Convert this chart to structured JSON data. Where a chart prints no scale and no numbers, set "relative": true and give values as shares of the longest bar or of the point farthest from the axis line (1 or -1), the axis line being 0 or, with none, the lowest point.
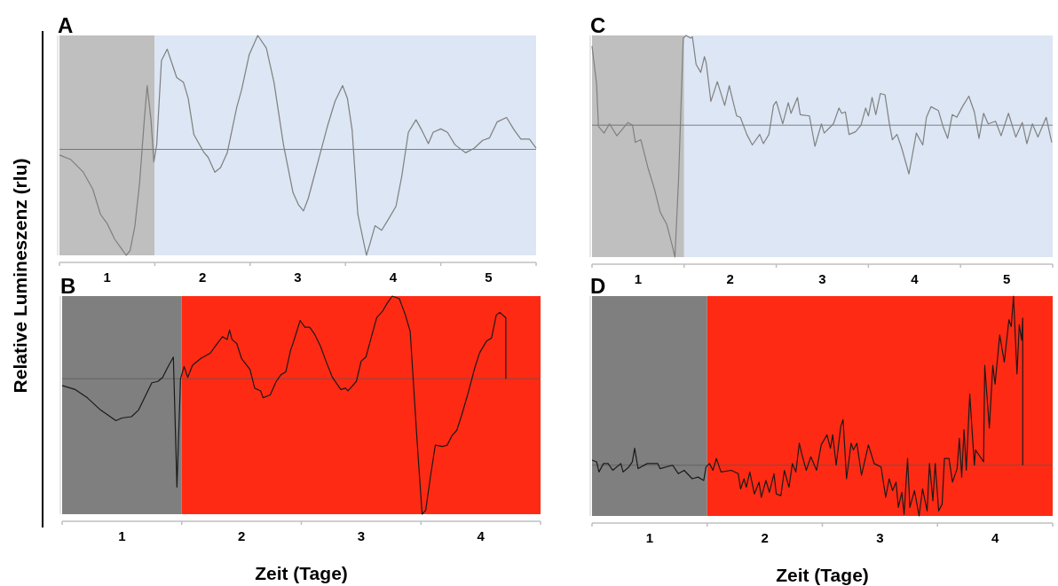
{
  "chart_data": [
    {
      "type": "line",
      "title": "A",
      "ylabel": "Relative Lumineszenz (rlu)",
      "relative": true,
      "xlim": [
        0,
        5
      ],
      "xticks": [
        {
          "value": 0,
          "label": null
        },
        {
          "value": 0.5,
          "label": "1"
        },
        {
          "value": 1,
          "label": null
        },
        {
          "value": 1.5,
          "label": "2"
        },
        {
          "value": 2,
          "label": null
        },
        {
          "value": 2.5,
          "label": "3"
        },
        {
          "value": 3,
          "label": null
        },
        {
          "value": 3.5,
          "label": "4"
        },
        {
          "value": 4,
          "label": null
        },
        {
          "value": 4.5,
          "label": "5"
        },
        {
          "value": 5,
          "label": null
        }
      ],
      "bands": [
        {
          "axis": "x",
          "from": 0,
          "to": 1,
          "color": "#bfbfbf"
        },
        {
          "axis": "x",
          "from": 1,
          "to": 5,
          "color": "#dce6f4"
        }
      ],
      "series": [
        {
          "color": "#7f7f7f",
          "x": [
            0,
            0.12,
            0.25,
            0.35,
            0.43,
            0.5,
            0.58,
            0.65,
            0.7,
            0.74,
            0.79,
            0.84,
            0.89,
            0.92,
            0.96,
            0.99,
            1.02,
            1.07,
            1.13,
            1.17,
            1.23,
            1.3,
            1.35,
            1.41,
            1.51,
            1.56,
            1.63,
            1.69,
            1.76,
            1.86,
            1.91,
            1.99,
            2.08,
            2.17,
            2.25,
            2.35,
            2.45,
            2.51,
            2.56,
            2.61,
            2.68,
            2.74,
            2.81,
            2.89,
            2.97,
            3.02,
            3.07,
            3.13,
            3.22,
            3.26,
            3.31,
            3.38,
            3.46,
            3.53,
            3.59,
            3.66,
            3.74,
            3.8,
            3.87,
            3.92,
            4,
            4.07,
            4.15,
            4.26,
            4.35,
            4.44,
            4.51,
            4.59,
            4.69,
            4.77,
            4.84,
            4.93,
            5
          ],
          "values": [
            -0.05,
            -0.09,
            -0.2,
            -0.35,
            -0.57,
            -0.65,
            -0.79,
            -0.87,
            -0.93,
            -0.89,
            -0.68,
            -0.3,
            0.26,
            0.56,
            0.26,
            -0.11,
            0.04,
            0.78,
            0.88,
            0.78,
            0.63,
            0.59,
            0.45,
            0.13,
            -0.02,
            -0.07,
            -0.2,
            -0.16,
            -0.03,
            0.37,
            0.52,
            0.83,
            1,
            0.89,
            0.59,
            0.04,
            -0.38,
            -0.49,
            -0.54,
            -0.43,
            -0.21,
            -0.02,
            0.2,
            0.42,
            0.56,
            0.45,
            0.17,
            -0.57,
            -0.93,
            -0.82,
            -0.67,
            -0.71,
            -0.6,
            -0.5,
            -0.24,
            0.15,
            0.26,
            0.17,
            0.05,
            0.15,
            0.18,
            0.15,
            0.04,
            -0.03,
            0.01,
            0.08,
            0.1,
            0.24,
            0.28,
            0.17,
            0.09,
            0.09,
            0.01
          ]
        }
      ]
    },
    {
      "type": "line",
      "title": "C",
      "relative": true,
      "xlim": [
        0,
        5
      ],
      "xticks": [
        {
          "value": 0,
          "label": null
        },
        {
          "value": 0.5,
          "label": "1"
        },
        {
          "value": 1,
          "label": null
        },
        {
          "value": 1.5,
          "label": "2"
        },
        {
          "value": 2,
          "label": null
        },
        {
          "value": 2.5,
          "label": "3"
        },
        {
          "value": 3,
          "label": null
        },
        {
          "value": 3.5,
          "label": "4"
        },
        {
          "value": 4,
          "label": null
        },
        {
          "value": 4.5,
          "label": "5"
        },
        {
          "value": 5,
          "label": null
        }
      ],
      "bands": [
        {
          "axis": "x",
          "from": 0,
          "to": 1,
          "color": "#bfbfbf"
        },
        {
          "axis": "x",
          "from": 1,
          "to": 5,
          "color": "#dce6f4"
        }
      ],
      "series": [
        {
          "color": "#808080",
          "x": [
            0,
            0.05,
            0.07,
            0.13,
            0.19,
            0.27,
            0.39,
            0.44,
            0.47,
            0.53,
            0.61,
            0.68,
            0.74,
            0.81,
            0.87,
            0.9,
            0.94,
            0.99,
            1.02,
            1.07,
            1.09,
            1.13,
            1.18,
            1.22,
            1.24,
            1.29,
            1.36,
            1.44,
            1.49,
            1.52,
            1.57,
            1.61,
            1.68,
            1.74,
            1.82,
            1.86,
            1.92,
            1.97,
            2,
            2.07,
            2.13,
            2.16,
            2.23,
            2.26,
            2.36,
            2.42,
            2.49,
            2.52,
            2.62,
            2.68,
            2.71,
            2.75,
            2.79,
            2.86,
            2.92,
            2.97,
            3,
            3.04,
            3.08,
            3.13,
            3.18,
            3.23,
            3.26,
            3.31,
            3.36,
            3.44,
            3.52,
            3.59,
            3.63,
            3.68,
            3.76,
            3.81,
            3.86,
            3.91,
            3.96,
            4.02,
            4.09,
            4.15,
            4.2,
            4.25,
            4.3,
            4.38,
            4.44,
            4.52,
            4.6,
            4.67,
            4.72,
            4.78,
            4.84,
            4.93,
            4.99
          ],
          "values": [
            0.6,
            0.31,
            -0.01,
            -0.06,
            0.01,
            -0.08,
            0.02,
            0,
            -0.13,
            -0.11,
            -0.33,
            -0.49,
            -0.66,
            -0.75,
            -0.91,
            -1,
            -0.4,
            0.66,
            0.68,
            0.66,
            0.67,
            0.46,
            0.4,
            0.52,
            0.47,
            0.18,
            0.33,
            0.15,
            0.3,
            0.21,
            0.07,
            0.06,
            -0.07,
            -0.15,
            -0.07,
            -0.14,
            -0.07,
            0.15,
            0.18,
            0.01,
            0.17,
            0.09,
            0.21,
            0.08,
            0.07,
            -0.16,
            0.01,
            -0.06,
            0.01,
            0.13,
            0.09,
            0.1,
            -0.07,
            -0.05,
            0,
            0.13,
            0.07,
            0.21,
            0.08,
            0.24,
            0.23,
            0,
            -0.11,
            -0.07,
            -0.17,
            -0.37,
            -0.06,
            -0.15,
            0.06,
            0.14,
            0.11,
            -0.01,
            -0.1,
            0.08,
            0.06,
            0.14,
            0.22,
            0.1,
            -0.1,
            0.09,
            0.01,
            0.03,
            -0.08,
            0.09,
            -0.09,
            0.02,
            -0.14,
            0.01,
            -0.09,
            0.06,
            -0.13
          ]
        }
      ]
    },
    {
      "type": "line",
      "title": "B",
      "xlabel": "Zeit (Tage)",
      "relative": true,
      "xlim": [
        0,
        4
      ],
      "xticks": [
        {
          "value": 0,
          "label": null
        },
        {
          "value": 0.5,
          "label": "1"
        },
        {
          "value": 1,
          "label": null
        },
        {
          "value": 1.5,
          "label": "2"
        },
        {
          "value": 2,
          "label": null
        },
        {
          "value": 2.5,
          "label": "3"
        },
        {
          "value": 3,
          "label": null
        },
        {
          "value": 3.5,
          "label": "4"
        },
        {
          "value": 4,
          "label": null
        }
      ],
      "bands": [
        {
          "axis": "x",
          "from": 0,
          "to": 1,
          "color": "#7f7f7f"
        },
        {
          "axis": "x",
          "from": 1,
          "to": 4,
          "color": "#ff2a14"
        }
      ],
      "series": [
        {
          "color": "#1a1a1a",
          "x": [
            0,
            0.11,
            0.21,
            0.32,
            0.45,
            0.5,
            0.58,
            0.64,
            0.7,
            0.75,
            0.8,
            0.84,
            0.88,
            0.93,
            0.96,
            0.99,
            1.02,
            1.05,
            1.09,
            1.16,
            1.24,
            1.28,
            1.34,
            1.38,
            1.4,
            1.42,
            1.46,
            1.5,
            1.57,
            1.61,
            1.66,
            1.68,
            1.74,
            1.79,
            1.83,
            1.87,
            1.91,
            1.93,
            1.99,
            2.03,
            2.07,
            2.11,
            2.16,
            2.21,
            2.26,
            2.33,
            2.37,
            2.39,
            2.46,
            2.5,
            2.54,
            2.58,
            2.63,
            2.68,
            2.72,
            2.76,
            2.82,
            2.87,
            2.91,
            2.93,
            2.97,
            3.01,
            3.04,
            3.08,
            3.12,
            3.18,
            3.22,
            3.26,
            3.3,
            3.34,
            3.39,
            3.45,
            3.49,
            3.55,
            3.59,
            3.63,
            3.66,
            3.71,
            3.71
          ],
          "values": [
            -0.05,
            -0.08,
            -0.14,
            -0.23,
            -0.31,
            -0.29,
            -0.28,
            -0.23,
            -0.12,
            -0.03,
            -0.02,
            0.01,
            0.08,
            0.16,
            -0.8,
            0,
            0.09,
            0.01,
            0.1,
            0.15,
            0.19,
            0.24,
            0.31,
            0.29,
            0.36,
            0.29,
            0.26,
            0.15,
            0.07,
            -0.07,
            -0.09,
            -0.14,
            -0.12,
            -0.02,
            0.03,
            0.05,
            0.21,
            0.26,
            0.43,
            0.38,
            0.38,
            0.33,
            0.24,
            0.12,
            0.01,
            -0.08,
            -0.07,
            -0.09,
            -0.02,
            0.13,
            0.16,
            0.29,
            0.45,
            0.5,
            0.56,
            0.61,
            0.59,
            0.47,
            0.35,
            0.07,
            -0.49,
            -1,
            -0.97,
            -0.72,
            -0.49,
            -0.5,
            -0.49,
            -0.42,
            -0.38,
            -0.27,
            -0.12,
            0.08,
            0.19,
            0.28,
            0.3,
            0.47,
            0.49,
            0.45,
            0
          ]
        }
      ]
    },
    {
      "type": "line",
      "title": "D",
      "xlabel": "Zeit (Tage)",
      "relative": true,
      "xlim": [
        0,
        4
      ],
      "xticks": [
        {
          "value": 0,
          "label": null
        },
        {
          "value": 0.5,
          "label": "1"
        },
        {
          "value": 1,
          "label": null
        },
        {
          "value": 1.5,
          "label": "2"
        },
        {
          "value": 2,
          "label": null
        },
        {
          "value": 2.5,
          "label": "3"
        },
        {
          "value": 3,
          "label": null
        },
        {
          "value": 3.5,
          "label": "4"
        },
        {
          "value": 4,
          "label": null
        }
      ],
      "bands": [
        {
          "axis": "x",
          "from": 0,
          "to": 1,
          "color": "#7f7f7f"
        },
        {
          "axis": "x",
          "from": 1,
          "to": 4,
          "color": "#ff2a14"
        }
      ],
      "series": [
        {
          "color": "#1a1a1a",
          "x": [
            0,
            0.04,
            0.06,
            0.1,
            0.14,
            0.18,
            0.25,
            0.27,
            0.32,
            0.35,
            0.37,
            0.4,
            0.48,
            0.57,
            0.59,
            0.7,
            0.75,
            0.8,
            0.87,
            0.92,
            0.97,
            0.99,
            1.02,
            1.05,
            1.08,
            1.12,
            1.21,
            1.27,
            1.29,
            1.32,
            1.34,
            1.37,
            1.41,
            1.45,
            1.47,
            1.51,
            1.54,
            1.58,
            1.6,
            1.64,
            1.67,
            1.71,
            1.74,
            1.77,
            1.8,
            1.82,
            1.86,
            1.9,
            1.95,
            1.99,
            2.04,
            2.07,
            2.09,
            2.12,
            2.16,
            2.18,
            2.21,
            2.25,
            2.27,
            2.3,
            2.34,
            2.4,
            2.45,
            2.51,
            2.55,
            2.58,
            2.61,
            2.64,
            2.66,
            2.69,
            2.71,
            2.74,
            2.76,
            2.8,
            2.84,
            2.87,
            2.91,
            2.93,
            2.96,
            2.98,
            3.01,
            3.04,
            3.06,
            3.1,
            3.13,
            3.17,
            3.19,
            3.21,
            3.23,
            3.25,
            3.28,
            3.32,
            3.33,
            3.37,
            3.4,
            3.41,
            3.45,
            3.48,
            3.5,
            3.54,
            3.58,
            3.62,
            3.64,
            3.66,
            3.69,
            3.71,
            3.73,
            3.74,
            3.74
          ],
          "values": [
            0.03,
            0.02,
            -0.04,
            0.01,
            0.01,
            -0.03,
            0.01,
            -0.04,
            -0.01,
            0.02,
            0.1,
            -0.02,
            0.01,
            0.01,
            -0.02,
            0,
            -0.05,
            -0.03,
            -0.08,
            -0.07,
            -0.09,
            -0.01,
            0.01,
            -0.03,
            0.04,
            -0.04,
            -0.03,
            -0.05,
            -0.14,
            -0.08,
            -0.13,
            -0.04,
            -0.17,
            -0.1,
            -0.19,
            -0.09,
            -0.16,
            -0.05,
            -0.17,
            -0.18,
            -0.03,
            -0.13,
            0.01,
            -0.04,
            0.13,
            0.07,
            -0.03,
            0.05,
            -0.03,
            0.12,
            0.18,
            0.1,
            0.18,
            0,
            0.23,
            0.27,
            -0.08,
            0.13,
            0.09,
            0.13,
            -0.06,
            0.12,
            0.01,
            -0.01,
            -0.19,
            -0.08,
            -0.15,
            -0.1,
            -0.25,
            -0.16,
            -0.29,
            0.04,
            -0.25,
            -0.15,
            -0.3,
            -0.14,
            -0.27,
            0.01,
            -0.21,
            0.01,
            -0.27,
            -0.23,
            0.04,
            0.04,
            -0.1,
            -0.02,
            0.16,
            -0.07,
            0.21,
            -0.03,
            0.42,
            0,
            0.09,
            0.05,
            0.02,
            0.59,
            0.22,
            0.59,
            0.48,
            0.77,
            0.61,
            0.86,
            0.82,
            1,
            0.54,
            0.83,
            0.74,
            0.87,
            0
          ]
        }
      ]
    }
  ]
}
